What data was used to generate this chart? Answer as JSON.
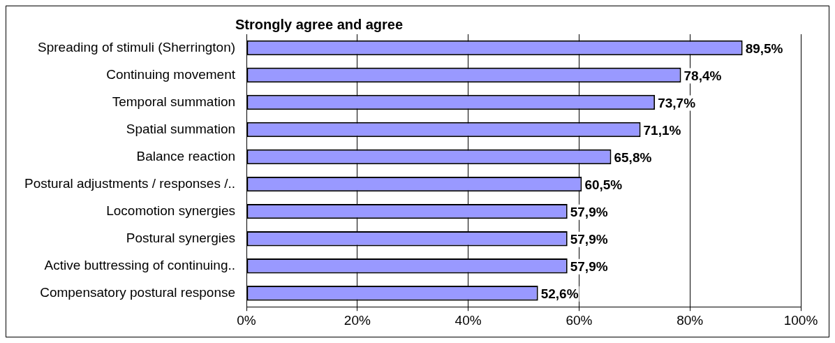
{
  "chart_data": {
    "type": "bar",
    "orientation": "horizontal",
    "title": "Strongly agree and agree",
    "categories": [
      "Spreading of stimuli (Sherrington)",
      "Continuing movement",
      "Temporal summation",
      "Spatial summation",
      "Balance reaction",
      "Postural adjustments / responses /..",
      "Locomotion synergies",
      "Postural synergies",
      "Active buttressing of continuing..",
      "Compensatory postural response"
    ],
    "values": [
      89.5,
      78.4,
      73.7,
      71.1,
      65.8,
      60.5,
      57.9,
      57.9,
      57.9,
      52.6
    ],
    "value_labels": [
      "89,5%",
      "78,4%",
      "73,7%",
      "71,1%",
      "65,8%",
      "60,5%",
      "57,9%",
      "57,9%",
      "57,9%",
      "52,6%"
    ],
    "color": "#9999ff",
    "xlim": [
      0,
      100
    ],
    "xticks": [
      {
        "value": 0,
        "label": "0%"
      },
      {
        "value": 20,
        "label": "20%"
      },
      {
        "value": 40,
        "label": "40%"
      },
      {
        "value": 60,
        "label": "60%"
      },
      {
        "value": 80,
        "label": "80%"
      },
      {
        "value": 100,
        "label": "100%"
      }
    ],
    "grid": "x",
    "legend": false
  }
}
